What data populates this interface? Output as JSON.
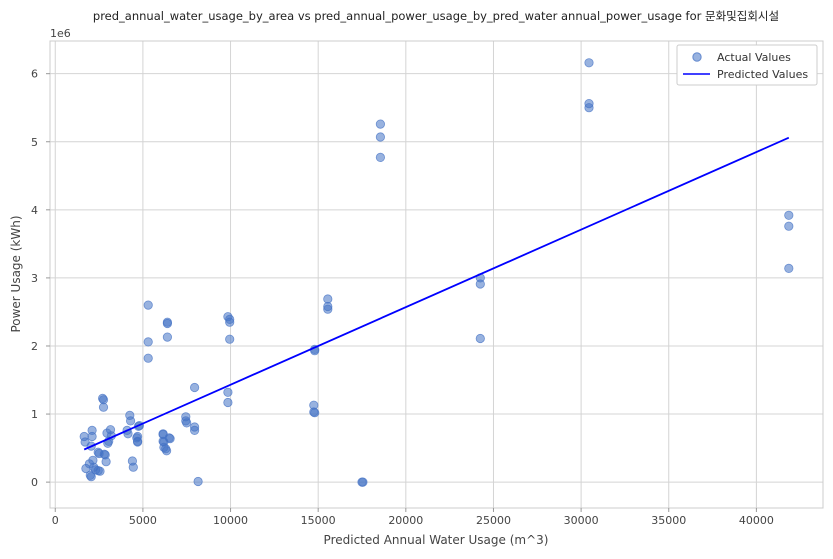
{
  "chart_data": {
    "type": "scatter",
    "title": "pred_annual_water_usage_by_area vs pred_annual_power_usage_by_pred_water annual_power_usage for 문화및집회시설",
    "xlabel": "Predicted Annual Water Usage (m^3)",
    "ylabel": "Power Usage (kWh)",
    "y_offset_label": "1e6",
    "xlim": [
      -300,
      43800
    ],
    "ylim": [
      -380000,
      6480000
    ],
    "xticks": [
      0,
      5000,
      10000,
      15000,
      20000,
      25000,
      30000,
      35000,
      40000
    ],
    "xtick_labels": [
      "0",
      "5000",
      "10000",
      "15000",
      "20000",
      "25000",
      "30000",
      "35000",
      "40000"
    ],
    "yticks": [
      0,
      1000000,
      2000000,
      3000000,
      4000000,
      5000000,
      6000000
    ],
    "ytick_labels": [
      "0",
      "1",
      "2",
      "3",
      "4",
      "5",
      "6"
    ],
    "grid": true,
    "legend_position": "top-right",
    "colors": {
      "actual": "#4472c4",
      "predicted": "#0000ff"
    },
    "series": [
      {
        "name": "Actual Values",
        "kind": "scatter",
        "points": [
          [
            1650,
            670000
          ],
          [
            1700,
            590000
          ],
          [
            1750,
            200000
          ],
          [
            1950,
            270000
          ],
          [
            2000,
            100000
          ],
          [
            2050,
            80000
          ],
          [
            2050,
            530000
          ],
          [
            2100,
            670000
          ],
          [
            2100,
            760000
          ],
          [
            2150,
            320000
          ],
          [
            2200,
            220000
          ],
          [
            2300,
            180000
          ],
          [
            2450,
            440000
          ],
          [
            2500,
            420000
          ],
          [
            2450,
            170000
          ],
          [
            2550,
            160000
          ],
          [
            2700,
            1230000
          ],
          [
            2750,
            1210000
          ],
          [
            2750,
            1100000
          ],
          [
            2800,
            410000
          ],
          [
            2850,
            400000
          ],
          [
            2900,
            300000
          ],
          [
            2950,
            720000
          ],
          [
            3000,
            570000
          ],
          [
            3050,
            600000
          ],
          [
            3150,
            770000
          ],
          [
            3200,
            680000
          ],
          [
            4100,
            760000
          ],
          [
            4150,
            710000
          ],
          [
            4250,
            980000
          ],
          [
            4300,
            900000
          ],
          [
            4400,
            310000
          ],
          [
            4450,
            220000
          ],
          [
            4650,
            650000
          ],
          [
            4700,
            670000
          ],
          [
            4700,
            600000
          ],
          [
            4700,
            590000
          ],
          [
            4750,
            820000
          ],
          [
            4800,
            830000
          ],
          [
            5300,
            2600000
          ],
          [
            5300,
            2060000
          ],
          [
            5300,
            1820000
          ],
          [
            6150,
            710000
          ],
          [
            6150,
            700000
          ],
          [
            6150,
            600000
          ],
          [
            6200,
            590000
          ],
          [
            6200,
            510000
          ],
          [
            6300,
            490000
          ],
          [
            6350,
            460000
          ],
          [
            6400,
            2350000
          ],
          [
            6400,
            2330000
          ],
          [
            6400,
            2130000
          ],
          [
            6500,
            650000
          ],
          [
            6550,
            640000
          ],
          [
            7450,
            960000
          ],
          [
            7450,
            900000
          ],
          [
            7500,
            870000
          ],
          [
            7950,
            1390000
          ],
          [
            7950,
            810000
          ],
          [
            7950,
            760000
          ],
          [
            8150,
            10000
          ],
          [
            9850,
            2430000
          ],
          [
            9950,
            2390000
          ],
          [
            9950,
            2350000
          ],
          [
            9950,
            2100000
          ],
          [
            9850,
            1320000
          ],
          [
            9850,
            1170000
          ],
          [
            14800,
            1950000
          ],
          [
            14800,
            1930000
          ],
          [
            14750,
            1130000
          ],
          [
            14750,
            1030000
          ],
          [
            14800,
            1020000
          ],
          [
            15550,
            2690000
          ],
          [
            15550,
            2580000
          ],
          [
            15550,
            2540000
          ],
          [
            17500,
            0
          ],
          [
            17550,
            0
          ],
          [
            18550,
            5260000
          ],
          [
            18550,
            5070000
          ],
          [
            18550,
            4770000
          ],
          [
            24250,
            3000000
          ],
          [
            24250,
            2910000
          ],
          [
            24250,
            2110000
          ],
          [
            30450,
            6160000
          ],
          [
            30450,
            5560000
          ],
          [
            30450,
            5500000
          ],
          [
            41850,
            3920000
          ],
          [
            41850,
            3760000
          ],
          [
            41850,
            3140000
          ]
        ]
      },
      {
        "name": "Predicted Values",
        "kind": "line",
        "points": [
          [
            1650,
            480000
          ],
          [
            41850,
            5060000
          ]
        ]
      }
    ]
  }
}
